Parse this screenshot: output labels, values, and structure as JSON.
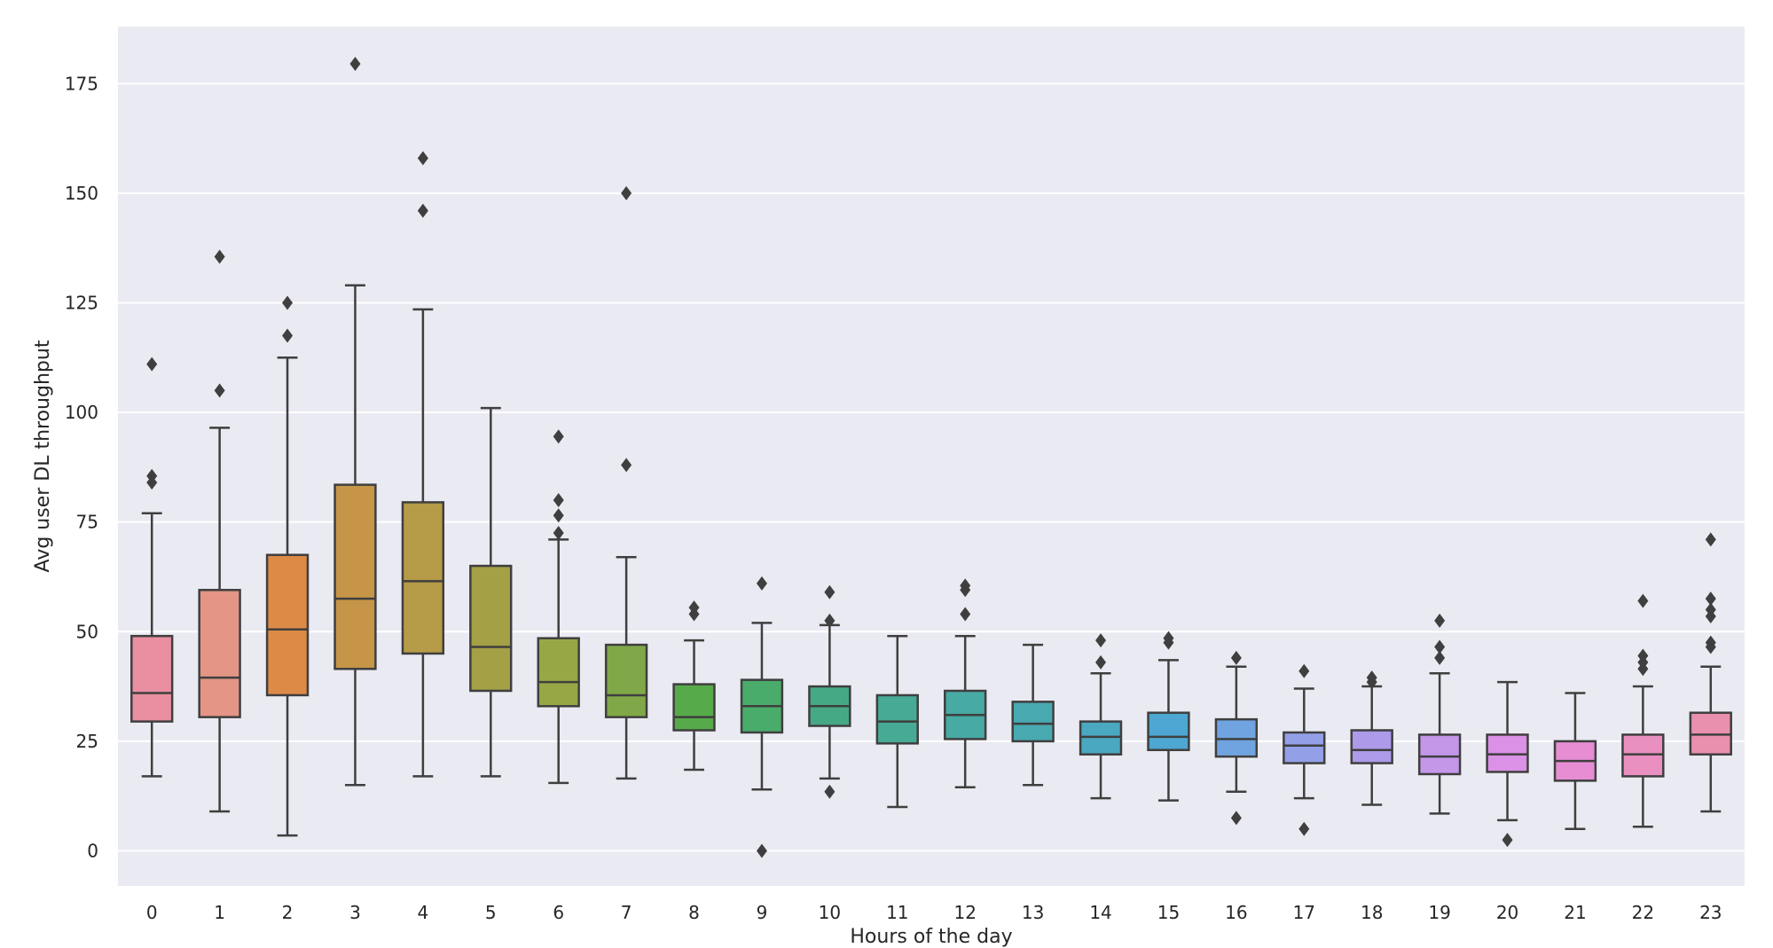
{
  "chart_data": {
    "type": "box",
    "title": "",
    "xlabel": "Hours of the day",
    "ylabel": "Avg user DL throughput",
    "ylim": [
      -8,
      188
    ],
    "yticks": [
      0,
      25,
      50,
      75,
      100,
      125,
      150,
      175
    ],
    "grid": true,
    "legend": "none",
    "background": "#eaeaf2",
    "gridline_color": "#ffffff",
    "categories": [
      "0",
      "1",
      "2",
      "3",
      "4",
      "5",
      "6",
      "7",
      "8",
      "9",
      "10",
      "11",
      "12",
      "13",
      "14",
      "15",
      "16",
      "17",
      "18",
      "19",
      "20",
      "21",
      "22",
      "23"
    ],
    "boxes": [
      {
        "x": "0",
        "whislo": 17,
        "q1": 29.5,
        "median": 36,
        "q3": 49,
        "whishi": 77,
        "fliers": [
          84,
          85.5,
          111
        ],
        "color": "#e98fa1"
      },
      {
        "x": "1",
        "whislo": 9,
        "q1": 30.5,
        "median": 39.5,
        "q3": 59.5,
        "whishi": 96.5,
        "fliers": [
          105,
          135.5
        ],
        "color": "#e49585"
      },
      {
        "x": "2",
        "whislo": 3.5,
        "q1": 35.5,
        "median": 50.5,
        "q3": 67.5,
        "whishi": 112.5,
        "fliers": [
          117.5,
          125
        ],
        "color": "#de8a47"
      },
      {
        "x": "3",
        "whislo": 15,
        "q1": 41.5,
        "median": 57.5,
        "q3": 83.5,
        "whishi": 129,
        "fliers": [
          179.5
        ],
        "color": "#c79547"
      },
      {
        "x": "4",
        "whislo": 17,
        "q1": 45,
        "median": 61.5,
        "q3": 79.5,
        "whishi": 123.5,
        "fliers": [
          146,
          158
        ],
        "color": "#b69b48"
      },
      {
        "x": "5",
        "whislo": 17,
        "q1": 36.5,
        "median": 46.5,
        "q3": 65,
        "whishi": 101,
        "fliers": [],
        "color": "#a3a046"
      },
      {
        "x": "6",
        "whislo": 15.5,
        "q1": 33,
        "median": 38.5,
        "q3": 48.5,
        "whishi": 71,
        "fliers": [
          72.5,
          76.5,
          80,
          94.5
        ],
        "color": "#98a746"
      },
      {
        "x": "7",
        "whislo": 16.5,
        "q1": 30.5,
        "median": 35.5,
        "q3": 47,
        "whishi": 67,
        "fliers": [
          88,
          150
        ],
        "color": "#81a848"
      },
      {
        "x": "8",
        "whislo": 18.5,
        "q1": 27.5,
        "median": 30.5,
        "q3": 38,
        "whishi": 48,
        "fliers": [
          54,
          55.5
        ],
        "color": "#56aa4a"
      },
      {
        "x": "9",
        "whislo": 14,
        "q1": 27,
        "median": 33,
        "q3": 39,
        "whishi": 52,
        "fliers": [
          0,
          61
        ],
        "color": "#4aac6b"
      },
      {
        "x": "10",
        "whislo": 16.5,
        "q1": 28.5,
        "median": 33,
        "q3": 37.5,
        "whishi": 51.5,
        "fliers": [
          13.5,
          52.5,
          59
        ],
        "color": "#46a985"
      },
      {
        "x": "11",
        "whislo": 10,
        "q1": 24.5,
        "median": 29.5,
        "q3": 35.5,
        "whishi": 49,
        "fliers": [],
        "color": "#47aa95"
      },
      {
        "x": "12",
        "whislo": 14.5,
        "q1": 25.5,
        "median": 31,
        "q3": 36.5,
        "whishi": 49,
        "fliers": [
          54,
          59.5,
          60.5
        ],
        "color": "#47aaa3"
      },
      {
        "x": "13",
        "whislo": 15,
        "q1": 25,
        "median": 29,
        "q3": 34,
        "whishi": 47,
        "fliers": [],
        "color": "#49a9b1"
      },
      {
        "x": "14",
        "whislo": 12,
        "q1": 22,
        "median": 26,
        "q3": 29.5,
        "whishi": 40.5,
        "fliers": [
          43,
          48
        ],
        "color": "#4aa8c0"
      },
      {
        "x": "15",
        "whislo": 11.5,
        "q1": 23,
        "median": 26,
        "q3": 31.5,
        "whishi": 43.5,
        "fliers": [
          47.5,
          48.5
        ],
        "color": "#4da7d2"
      },
      {
        "x": "16",
        "whislo": 13.5,
        "q1": 21.5,
        "median": 25.5,
        "q3": 30,
        "whishi": 42,
        "fliers": [
          7.5,
          44
        ],
        "color": "#6fa4e0"
      },
      {
        "x": "17",
        "whislo": 12,
        "q1": 20,
        "median": 24,
        "q3": 27,
        "whishi": 37,
        "fliers": [
          5,
          41
        ],
        "color": "#93a0e8"
      },
      {
        "x": "18",
        "whislo": 10.5,
        "q1": 20,
        "median": 23,
        "q3": 27.5,
        "whishi": 37.5,
        "fliers": [
          38.5,
          39.5
        ],
        "color": "#ad9ae9"
      },
      {
        "x": "19",
        "whislo": 8.5,
        "q1": 17.5,
        "median": 21.5,
        "q3": 26.5,
        "whishi": 40.5,
        "fliers": [
          44,
          46.5,
          52.5
        ],
        "color": "#c497e9"
      },
      {
        "x": "20",
        "whislo": 7,
        "q1": 18,
        "median": 22,
        "q3": 26.5,
        "whishi": 38.5,
        "fliers": [
          2.5
        ],
        "color": "#db91e5"
      },
      {
        "x": "21",
        "whislo": 5,
        "q1": 16,
        "median": 20.5,
        "q3": 25,
        "whishi": 36,
        "fliers": [],
        "color": "#e68dd4"
      },
      {
        "x": "22",
        "whislo": 5.5,
        "q1": 17,
        "median": 22,
        "q3": 26.5,
        "whishi": 37.5,
        "fliers": [
          41.5,
          43,
          44.5,
          57
        ],
        "color": "#e990c0"
      },
      {
        "x": "23",
        "whislo": 9,
        "q1": 22,
        "median": 26.5,
        "q3": 31.5,
        "whishi": 42,
        "fliers": [
          46.5,
          47.5,
          53.5,
          55,
          57.5,
          71
        ],
        "color": "#e890ad"
      }
    ]
  }
}
